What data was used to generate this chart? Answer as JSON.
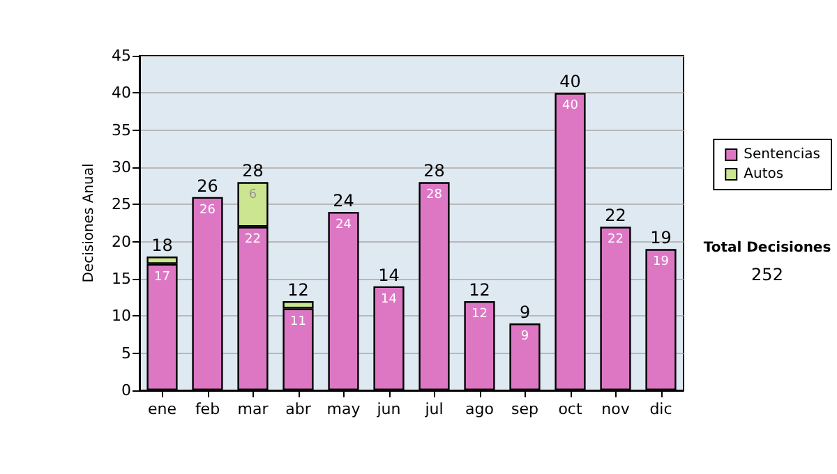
{
  "chart_data": {
    "type": "bar",
    "stacked": true,
    "ylabel": "Decisiones Anual",
    "categories": [
      "ene",
      "feb",
      "mar",
      "abr",
      "may",
      "jun",
      "jul",
      "ago",
      "sep",
      "oct",
      "nov",
      "dic"
    ],
    "series": [
      {
        "name": "Sentencias",
        "color": "#dd77c4",
        "values": [
          17,
          26,
          22,
          11,
          24,
          14,
          28,
          12,
          9,
          40,
          22,
          19
        ],
        "value_labels": [
          "17",
          "26",
          "22",
          "11",
          "24",
          "14",
          "28",
          "12",
          "9",
          "40",
          "22",
          "19"
        ]
      },
      {
        "name": "Autos",
        "color": "#cce590",
        "values": [
          1,
          null,
          6,
          1,
          null,
          null,
          null,
          null,
          null,
          null,
          null,
          null
        ],
        "value_labels": [
          null,
          null,
          "6",
          null,
          null,
          null,
          null,
          null,
          null,
          null,
          null,
          null
        ]
      }
    ],
    "totals": [
      "18",
      "26",
      "28",
      "12",
      "24",
      "14",
      "28",
      "12",
      "9",
      "40",
      "22",
      "19"
    ],
    "ylim": [
      0,
      45
    ],
    "yticks": [
      0,
      5,
      10,
      15,
      20,
      25,
      30,
      35,
      40,
      45
    ],
    "grid": "y",
    "legend": "right",
    "annotations": [
      "Total Decisiones",
      "252"
    ]
  }
}
